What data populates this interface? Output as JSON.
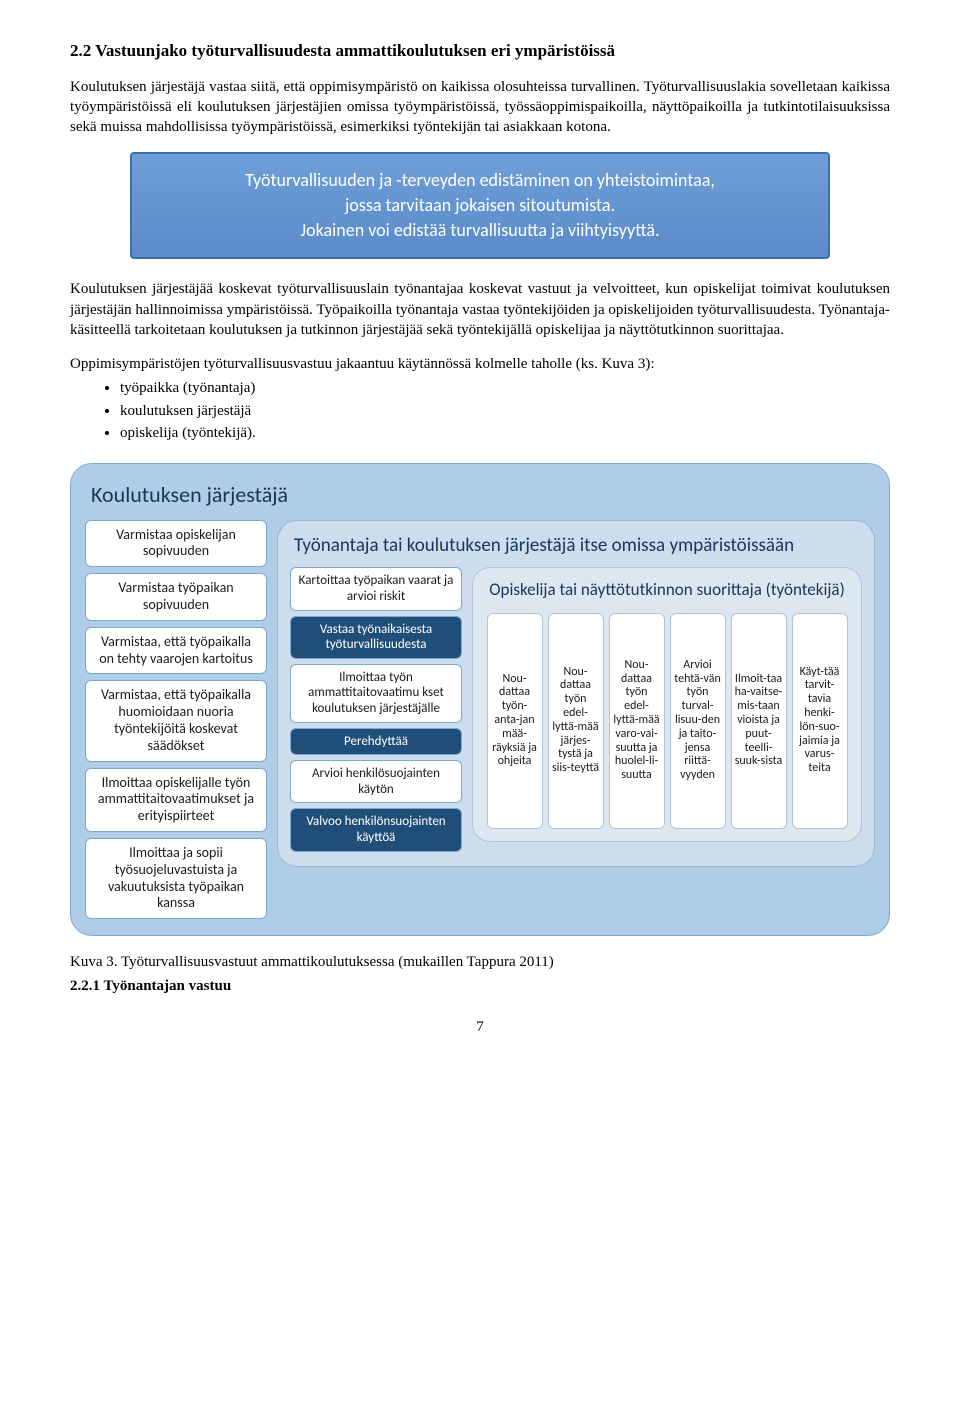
{
  "heading": "2.2 Vastuunjako työturvallisuudesta ammattikoulutuksen eri ympäristöissä",
  "para1": "Koulutuksen järjestäjä vastaa siitä, että oppimisympäristö on kaikissa olosuhteissa turvallinen. Työturvallisuuslakia sovelletaan kaikissa työympäristöissä eli koulutuksen järjestäjien omissa työympäristöissä, työssäoppimispaikoilla, näyttöpaikoilla ja tutkintotilaisuuksissa sekä muissa mahdollisissa työympäristöissä, esimerkiksi työntekijän tai asiakkaan kotona.",
  "callout_line1": "Työturvallisuuden ja -terveyden edistäminen on yhteistoimintaa,",
  "callout_line2": "jossa tarvitaan jokaisen sitoutumista.",
  "callout_line3": "Jokainen voi edistää turvallisuutta ja viihtyisyyttä.",
  "para2": "Koulutuksen järjestäjää koskevat työturvallisuuslain työnantajaa koskevat vastuut ja velvoitteet, kun opiskelijat toimivat koulutuksen järjestäjän hallinnoimissa ympäristöissä. Työpaikoilla työnantaja vastaa työntekijöiden ja opiskelijoiden työturvallisuudesta. Työnantaja-käsitteellä tarkoitetaan koulutuksen ja tutkinnon järjestäjää sekä työntekijällä opiskelijaa ja näyttötutkinnon suorittajaa.",
  "para3": "Oppimisympäristöjen työturvallisuusvastuu jakaantuu käytännössä kolmelle taholle (ks. Kuva 3):",
  "bullets": [
    "työpaikka (työnantaja)",
    "koulutuksen järjestäjä",
    "opiskelija (työntekijä)."
  ],
  "diagram": {
    "outer_title": "Koulutuksen järjestäjä",
    "left": [
      "Varmistaa opiskelijan sopivuuden",
      "Varmistaa työpaikan sopivuuden",
      "Varmistaa, että työpaikalla on tehty vaarojen kartoitus",
      "Varmistaa, että työpaikalla huomioidaan nuoria työntekijöitä koskevat säädökset",
      "Ilmoittaa opiskelijalle työn ammattitaitovaatimukset ja erityispiirteet",
      "Ilmoittaa ja sopii työsuojeluvastuista ja vakuutuksista työpaikan kanssa"
    ],
    "mid_title": "Työnantaja tai koulutuksen järjestäjä itse omissa ympäristöissään",
    "mid": [
      {
        "text": "Kartoittaa työpaikan vaarat ja arvioi riskit",
        "dark": false
      },
      {
        "text": "Vastaa työnaikaisesta työturvallisuudesta",
        "dark": true
      },
      {
        "text": "Ilmoittaa työn ammattitaitovaatimu kset koulutuksen järjestäjälle",
        "dark": false
      },
      {
        "text": "Perehdyttää",
        "dark": true
      },
      {
        "text": "Arvioi henkilösuojainten käytön",
        "dark": false
      },
      {
        "text": "Valvoo henkilönsuojainten käyttöä",
        "dark": true
      }
    ],
    "inner_title": "Opiskelija tai näyttötutkinnon suorittaja (työntekijä)",
    "inner": [
      "Nou-dattaa työn-anta-jan mää-räyksiä ja ohjeita",
      "Nou-dattaa työn edel-lyttä-mää järjes-tystä ja siis-teyttä",
      "Nou-dattaa työn edel-lyttä-mää varo-vai-suutta ja huolel-li-suutta",
      "Arvioi tehtä-vän työn turval-lisuu-den ja taito-jensa riittä-vyyden",
      "Ilmoit-taa ha-vaitse-mis-taan vioista ja puut-teelli-suuk-sista",
      "Käyt-tää tarvit-tavia henki-lön-suo-jaimia ja varus-teita"
    ],
    "colors": {
      "outer_bg": "#b0cde8",
      "mid_bg": "#cdddeb",
      "inner_bg": "#dde7f0",
      "box_bg": "#ffffff",
      "box_dark_bg": "#1f4e79",
      "title_color": "#17365d"
    }
  },
  "caption": "Kuva 3. Työturvallisuusvastuut ammattikoulutuksessa (mukaillen Tappura 2011)",
  "subheading": "2.2.1  Työnantajan vastuu",
  "page_number": "7"
}
